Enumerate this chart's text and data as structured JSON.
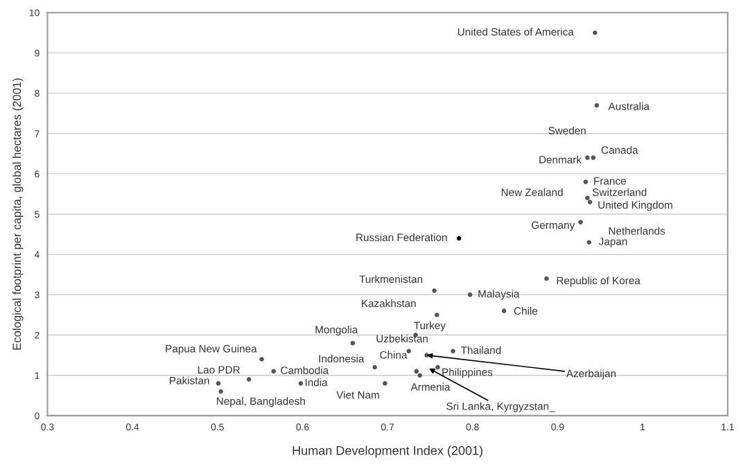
{
  "chart_data": {
    "type": "scatter",
    "xlabel": "Human Development Index (2001)",
    "ylabel": "Ecological footprint per capita, global hectares (2001)",
    "xlim": [
      0.3,
      1.1
    ],
    "xticks": [
      0.3,
      0.4,
      0.5,
      0.6,
      0.7,
      0.8,
      0.9,
      {
        "value": 1.0,
        "label": "1"
      },
      1.1
    ],
    "ylim": [
      0,
      10
    ],
    "yticks": [
      0,
      1,
      2,
      3,
      4,
      5,
      6,
      7,
      8,
      9,
      10
    ],
    "grid": "y",
    "legend": false,
    "marker": "circle",
    "series": [
      {
        "x": [
          0.944,
          0.946,
          0.935,
          0.942,
          0.933,
          0.935,
          0.938,
          0.927,
          0.937,
          0.784,
          0.887,
          0.755,
          0.797,
          0.837,
          0.758,
          0.733,
          0.659,
          0.725,
          0.746,
          0.777,
          0.552,
          0.685,
          0.566,
          0.734,
          0.759,
          0.738,
          0.537,
          0.501,
          0.504,
          0.598,
          0.697
        ],
        "values": [
          9.5,
          7.7,
          6.4,
          6.4,
          5.8,
          5.4,
          5.3,
          4.8,
          4.3,
          4.4,
          3.4,
          3.1,
          3.0,
          2.6,
          2.5,
          2.0,
          1.8,
          1.6,
          1.5,
          1.6,
          1.4,
          1.2,
          1.1,
          1.1,
          1.2,
          1.0,
          0.9,
          0.8,
          0.6,
          0.8,
          0.8
        ],
        "colors": [
          "#555555",
          "#555555",
          "#555555",
          "#555555",
          "#555555",
          "#555555",
          "#555555",
          "#555555",
          "#555555",
          "#000000",
          "#555555",
          "#555555",
          "#555555",
          "#555555",
          "#555555",
          "#555555",
          "#555555",
          "#555555",
          "#555555",
          "#555555",
          "#555555",
          "#555555",
          "#555555",
          "#555555",
          "#555555",
          "#555555",
          "#555555",
          "#555555",
          "#555555",
          "#555555",
          "#555555"
        ]
      }
    ],
    "annotations": [
      {
        "text": "United States of America",
        "x": 0.944,
        "y": 9.5
      },
      {
        "text": "Australia",
        "x": 0.946,
        "y": 7.7
      },
      "Sweden",
      {
        "text": "Denmark",
        "x": 0.935,
        "y": 6.4
      },
      {
        "text": "Canada",
        "x": 0.942,
        "y": 6.4
      },
      {
        "text": "France",
        "x": 0.933,
        "y": 5.8
      },
      {
        "text": "New Zealand",
        "x": 0.935,
        "y": 5.4
      },
      {
        "text": "Switzerland",
        "x": 0.935,
        "y": 5.4
      },
      {
        "text": "United Kingdom",
        "x": 0.938,
        "y": 5.3
      },
      {
        "text": "Netherlands",
        "x": 0.938,
        "y": 5.3
      },
      {
        "text": "Germany",
        "x": 0.927,
        "y": 4.8
      },
      {
        "text": "Japan",
        "x": 0.937,
        "y": 4.3
      },
      {
        "text": "Russian Federation",
        "x": 0.784,
        "y": 4.4
      },
      {
        "text": "Republic of Korea",
        "x": 0.887,
        "y": 3.4
      },
      {
        "text": "Turkmenistan",
        "x": 0.755,
        "y": 3.1
      },
      {
        "text": "Malaysia",
        "x": 0.797,
        "y": 3.0
      },
      {
        "text": "Chile",
        "x": 0.837,
        "y": 2.6
      },
      {
        "text": "Kazakhstan",
        "x": 0.758,
        "y": 2.5
      },
      {
        "text": "Turkey",
        "x": 0.733,
        "y": 2.0
      },
      {
        "text": "Mongolia",
        "x": 0.659,
        "y": 1.8
      },
      {
        "text": "Uzbekistan",
        "x": 0.725,
        "y": 1.6
      },
      {
        "text": "Azerbaijan",
        "x": 0.746,
        "y": 1.5
      },
      {
        "text": "Thailand",
        "x": 0.777,
        "y": 1.6
      },
      {
        "text": "Papua New Guinea",
        "x": 0.552,
        "y": 1.4
      },
      {
        "text": "Indonesia",
        "x": 0.685,
        "y": 1.2
      },
      {
        "text": "Cambodia",
        "x": 0.566,
        "y": 1.1
      },
      {
        "text": "China",
        "x": 0.734,
        "y": 1.1
      },
      {
        "text": "Philippines",
        "x": 0.759,
        "y": 1.2
      },
      {
        "text": "Armenia",
        "x": 0.738,
        "y": 1.0
      },
      {
        "text": "Lao PDR",
        "x": 0.537,
        "y": 0.9
      },
      {
        "text": "Pakistan",
        "x": 0.501,
        "y": 0.8
      },
      {
        "text": "Nepal, Bangladesh",
        "x": 0.504,
        "y": 0.6
      },
      {
        "text": "India",
        "x": 0.598,
        "y": 0.8
      },
      {
        "text": "Viet Nam",
        "x": 0.697,
        "y": 0.8
      },
      "Sri Lanka, Kyrgyzstan_"
    ]
  }
}
